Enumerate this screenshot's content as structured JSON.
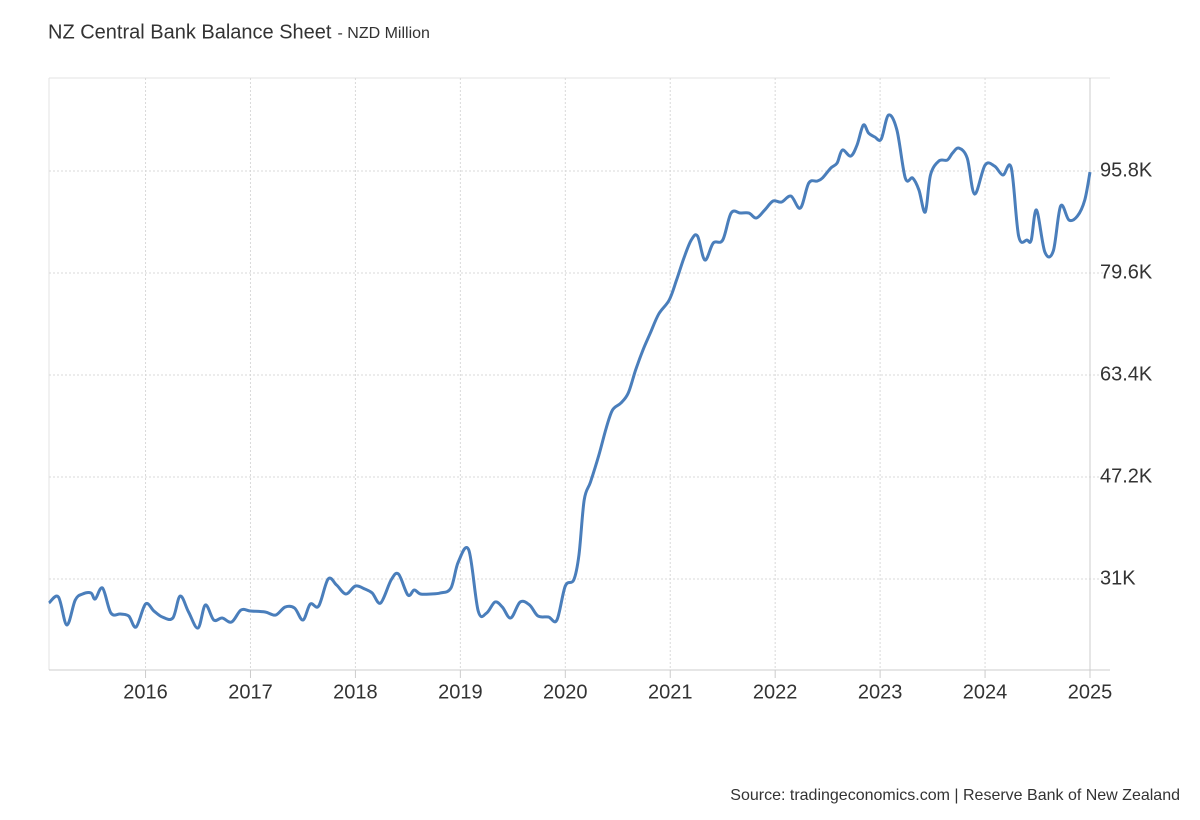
{
  "chart_data": {
    "type": "line",
    "title": "NZ Central Bank Balance Sheet",
    "subtitle": "- NZD Million",
    "source": "Source: tradingeconomics.com | Reserve Bank of New Zealand",
    "xlim": [
      2015.08,
      2025.0
    ],
    "xticks": [
      2016,
      2017,
      2018,
      2019,
      2020,
      2021,
      2022,
      2023,
      2024,
      2025
    ],
    "ylim": [
      16550,
      110570
    ],
    "yticks": [
      {
        "value": 31000,
        "label": "31K"
      },
      {
        "value": 47200,
        "label": "47.2K"
      },
      {
        "value": 63400,
        "label": "63.4K"
      },
      {
        "value": 79600,
        "label": "79.6K"
      },
      {
        "value": 95800,
        "label": "95.8K"
      }
    ],
    "grid": true,
    "series": [
      {
        "color": "#4a7ebb",
        "x": [
          2015.08,
          2015.17,
          2015.25,
          2015.33,
          2015.4,
          2015.48,
          2015.52,
          2015.59,
          2015.67,
          2015.76,
          2015.84,
          2015.91,
          2016.0,
          2016.08,
          2016.16,
          2016.26,
          2016.33,
          2016.41,
          2016.5,
          2016.57,
          2016.65,
          2016.73,
          2016.82,
          2016.91,
          2017.0,
          2017.14,
          2017.24,
          2017.33,
          2017.42,
          2017.5,
          2017.57,
          2017.65,
          2017.74,
          2017.82,
          2017.91,
          2018.0,
          2018.09,
          2018.16,
          2018.24,
          2018.34,
          2018.41,
          2018.5,
          2018.56,
          2018.62,
          2018.72,
          2018.81,
          2018.91,
          2018.98,
          2019.08,
          2019.17,
          2019.25,
          2019.33,
          2019.4,
          2019.48,
          2019.57,
          2019.66,
          2019.74,
          2019.84,
          2019.92,
          2020.0,
          2020.08,
          2020.13,
          2020.18,
          2020.24,
          2020.32,
          2020.39,
          2020.45,
          2020.53,
          2020.6,
          2020.67,
          2020.74,
          2020.81,
          2020.89,
          2020.99,
          2021.06,
          2021.13,
          2021.2,
          2021.26,
          2021.33,
          2021.41,
          2021.5,
          2021.58,
          2021.67,
          2021.75,
          2021.82,
          2021.9,
          2021.98,
          2022.06,
          2022.15,
          2022.24,
          2022.32,
          2022.4,
          2022.45,
          2022.53,
          2022.59,
          2022.64,
          2022.72,
          2022.78,
          2022.84,
          2022.89,
          2022.95,
          2023.01,
          2023.08,
          2023.16,
          2023.24,
          2023.31,
          2023.37,
          2023.43,
          2023.48,
          2023.56,
          2023.64,
          2023.69,
          2023.75,
          2023.83,
          2023.9,
          2024.0,
          2024.09,
          2024.17,
          2024.25,
          2024.32,
          2024.4,
          2024.44,
          2024.49,
          2024.57,
          2024.65,
          2024.72,
          2024.8,
          2024.88,
          2024.95,
          2025.0
        ],
        "values": [
          27190,
          28140,
          23700,
          27660,
          28620,
          28780,
          27820,
          29570,
          25600,
          25440,
          25120,
          23380,
          27030,
          25920,
          24970,
          24810,
          28300,
          25760,
          23220,
          26870,
          24490,
          24810,
          24170,
          26080,
          25920,
          25760,
          25280,
          26550,
          26390,
          24490,
          27030,
          26710,
          31000,
          30050,
          28620,
          29890,
          29410,
          28780,
          27190,
          30840,
          31790,
          28460,
          29250,
          28620,
          28620,
          28780,
          29570,
          33700,
          35610,
          25920,
          25600,
          27350,
          26550,
          24810,
          27350,
          26870,
          25120,
          24970,
          24490,
          29890,
          30840,
          34810,
          43550,
          46400,
          50690,
          54980,
          57840,
          58950,
          60540,
          64190,
          67370,
          70060,
          73080,
          75310,
          78480,
          81970,
          84830,
          85470,
          81660,
          84360,
          84830,
          89120,
          89120,
          89120,
          88330,
          89600,
          91030,
          90870,
          91820,
          89910,
          93880,
          94200,
          94680,
          96270,
          97060,
          99130,
          98170,
          99920,
          103100,
          101820,
          101190,
          100870,
          104680,
          102300,
          94680,
          94680,
          92770,
          89280,
          95160,
          97380,
          97540,
          98650,
          99440,
          97850,
          92140,
          96740,
          96580,
          95160,
          96270,
          85470,
          84830,
          84830,
          89600,
          82930,
          83090,
          90230,
          88010,
          88640,
          91190,
          95630
        ]
      }
    ]
  }
}
